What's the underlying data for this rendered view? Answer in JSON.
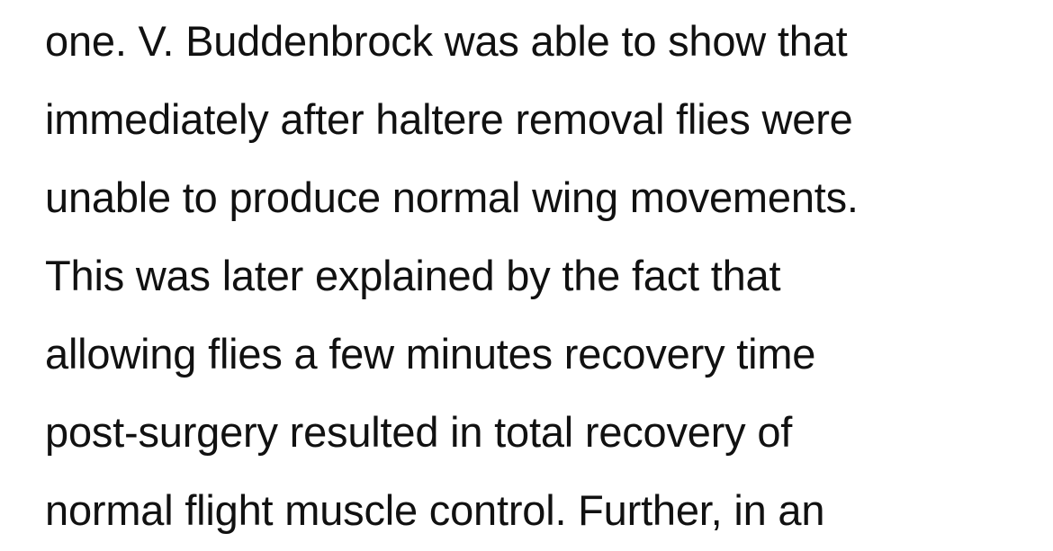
{
  "article": {
    "lines": [
      "one. V. Buddenbrock was able to show that",
      "immediately after haltere removal flies were",
      "unable to produce normal wing movements.",
      "This was later explained by the fact that",
      "allowing flies a few minutes recovery time",
      "post-surgery resulted in total recovery of",
      "normal flight muscle control. Further, in an"
    ]
  },
  "colors": {
    "background": "#ffffff",
    "text": "#111111"
  }
}
